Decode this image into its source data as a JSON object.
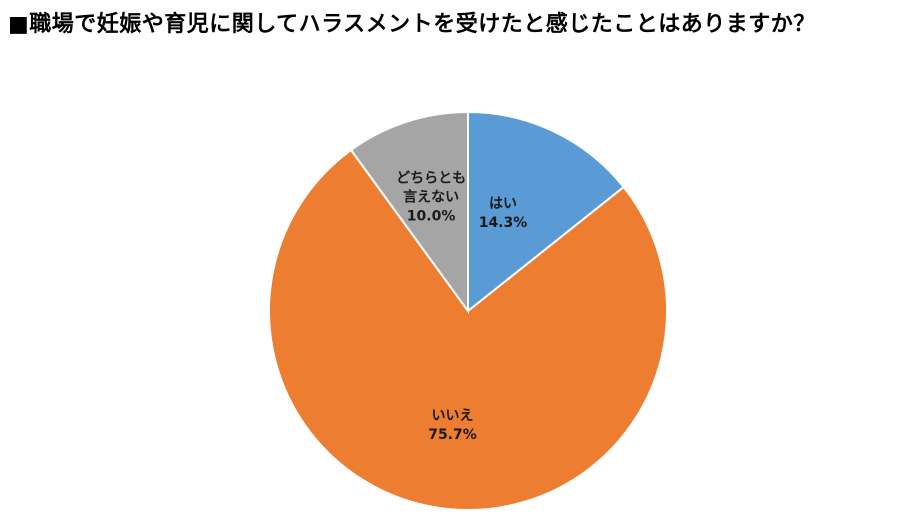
{
  "title": "■職場で妊娠や育児に関してハラスメントを受けたと感じたことはありますか？",
  "chart_data": {
    "type": "pie",
    "title": "■職場で妊娠や育児に関してハラスメントを受けたと感じたことはありますか？",
    "start_angle_deg": 0,
    "direction": "clockwise",
    "slices": [
      {
        "label": "はい",
        "value": 14.3,
        "value_label": "14.3%",
        "color": "#5b9bd5"
      },
      {
        "label": "いいえ",
        "value": 75.7,
        "value_label": "75.7%",
        "color": "#ed7d31"
      },
      {
        "label": "どちらとも言えない",
        "label_lines": [
          "どちらとも",
          "言えない"
        ],
        "value": 10.0,
        "value_label": "10.0%",
        "color": "#a5a5a5"
      }
    ]
  }
}
